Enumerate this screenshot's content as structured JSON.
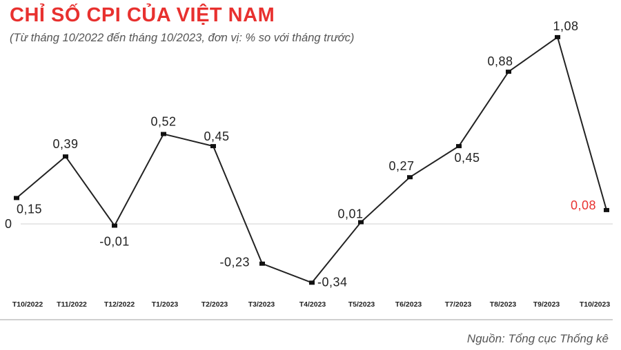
{
  "header": {
    "title": "CHỈ SỐ CPI CỦA VIỆT NAM",
    "subtitle": "(Từ tháng 10/2022 đến tháng 10/2023, đơn vị: % so với tháng trước)"
  },
  "footer": {
    "source": "Nguồn: Tổng cục Thống kê"
  },
  "chart_data": {
    "type": "line",
    "title": "CHỈ SỐ CPI CỦA VIỆT NAM",
    "subtitle": "(Từ tháng 10/2022 đến tháng 10/2023, đơn vị: % so với tháng trước)",
    "categories": [
      "T10/2022",
      "T11/2022",
      "T12/2022",
      "T1/2023",
      "T2/2023",
      "T3/2023",
      "T4/2023",
      "T5/2023",
      "T6/2023",
      "T7/2023",
      "T8/2023",
      "T9/2023",
      "T10/2023"
    ],
    "series": [
      {
        "values": [
          0.15,
          0.39,
          -0.01,
          0.52,
          0.45,
          -0.23,
          -0.34,
          0.01,
          0.27,
          0.45,
          0.88,
          1.08,
          0.08
        ],
        "labels": [
          "0,15",
          "0,39",
          "-0,01",
          "0,52",
          "0,45",
          "-0,23",
          "-0,34",
          "0,01",
          "0,27",
          "0,45",
          "0,88",
          "1,08",
          "0,08"
        ]
      }
    ],
    "zero_line_label": "0",
    "ylim": [
      -0.4,
      1.2
    ],
    "line_color": "#222222",
    "highlight_color": "#e8312f",
    "highlight_index": 12,
    "grid": false
  }
}
